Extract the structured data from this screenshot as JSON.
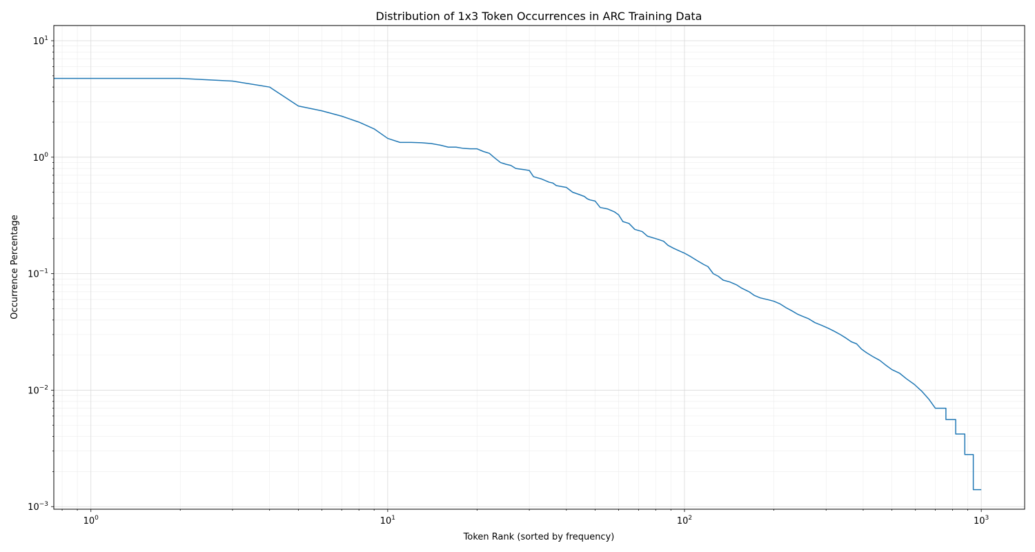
{
  "chart_data": {
    "type": "line",
    "title": "Distribution of 1x3 Token Occurrences in ARC Training Data",
    "xlabel": "Token Rank (sorted by frequency)",
    "ylabel": "Occurrence Percentage",
    "xscale": "log",
    "yscale": "log",
    "xlim": [
      0.75,
      1400
    ],
    "ylim": [
      0.00095,
      13.5
    ],
    "grid": true,
    "color": "#1f77b4",
    "x_ticks": [
      {
        "base": "10",
        "exp": "0",
        "value": 1
      },
      {
        "base": "10",
        "exp": "1",
        "value": 10
      },
      {
        "base": "10",
        "exp": "2",
        "value": 100
      },
      {
        "base": "10",
        "exp": "3",
        "value": 1000
      }
    ],
    "y_ticks": [
      {
        "base": "10",
        "exp": "−3",
        "value": 0.001
      },
      {
        "base": "10",
        "exp": "−2",
        "value": 0.01
      },
      {
        "base": "10",
        "exp": "−1",
        "value": 0.1
      },
      {
        "base": "10",
        "exp": "0",
        "value": 1
      },
      {
        "base": "10",
        "exp": "1",
        "value": 10
      }
    ],
    "series": [
      {
        "points": [
          [
            0.75,
            4.75
          ],
          [
            1,
            4.75
          ],
          [
            2,
            4.75
          ],
          [
            3,
            4.5
          ],
          [
            4,
            4.0
          ],
          [
            5,
            2.75
          ],
          [
            6,
            2.5
          ],
          [
            7,
            2.25
          ],
          [
            8,
            2.0
          ],
          [
            9,
            1.75
          ],
          [
            10,
            1.45
          ],
          [
            11,
            1.34
          ],
          [
            12,
            1.34
          ],
          [
            13,
            1.33
          ],
          [
            14,
            1.31
          ],
          [
            15,
            1.27
          ],
          [
            16,
            1.22
          ],
          [
            17,
            1.22
          ],
          [
            18,
            1.19
          ],
          [
            19,
            1.18
          ],
          [
            20,
            1.18
          ],
          [
            21,
            1.12
          ],
          [
            22,
            1.08
          ],
          [
            23,
            0.98
          ],
          [
            24,
            0.9
          ],
          [
            25,
            0.87
          ],
          [
            26,
            0.85
          ],
          [
            27,
            0.8
          ],
          [
            28,
            0.79
          ],
          [
            29,
            0.78
          ],
          [
            30,
            0.77
          ],
          [
            31,
            0.68
          ],
          [
            33,
            0.65
          ],
          [
            35,
            0.61
          ],
          [
            36,
            0.6
          ],
          [
            37,
            0.57
          ],
          [
            40,
            0.55
          ],
          [
            42,
            0.5
          ],
          [
            44,
            0.48
          ],
          [
            46,
            0.46
          ],
          [
            47,
            0.44
          ],
          [
            48,
            0.43
          ],
          [
            50,
            0.42
          ],
          [
            52,
            0.37
          ],
          [
            55,
            0.36
          ],
          [
            58,
            0.34
          ],
          [
            60,
            0.32
          ],
          [
            62,
            0.28
          ],
          [
            65,
            0.27
          ],
          [
            68,
            0.24
          ],
          [
            72,
            0.23
          ],
          [
            75,
            0.21
          ],
          [
            80,
            0.2
          ],
          [
            85,
            0.19
          ],
          [
            88,
            0.175
          ],
          [
            92,
            0.165
          ],
          [
            97,
            0.155
          ],
          [
            100,
            0.15
          ],
          [
            105,
            0.14
          ],
          [
            110,
            0.13
          ],
          [
            116,
            0.12
          ],
          [
            120,
            0.115
          ],
          [
            125,
            0.1
          ],
          [
            130,
            0.095
          ],
          [
            135,
            0.088
          ],
          [
            142,
            0.085
          ],
          [
            150,
            0.08
          ],
          [
            156,
            0.075
          ],
          [
            165,
            0.07
          ],
          [
            172,
            0.065
          ],
          [
            180,
            0.062
          ],
          [
            190,
            0.06
          ],
          [
            200,
            0.058
          ],
          [
            210,
            0.055
          ],
          [
            220,
            0.051
          ],
          [
            230,
            0.048
          ],
          [
            240,
            0.045
          ],
          [
            250,
            0.043
          ],
          [
            262,
            0.041
          ],
          [
            275,
            0.038
          ],
          [
            290,
            0.036
          ],
          [
            305,
            0.034
          ],
          [
            320,
            0.032
          ],
          [
            335,
            0.03
          ],
          [
            350,
            0.028
          ],
          [
            365,
            0.026
          ],
          [
            380,
            0.025
          ],
          [
            395,
            0.0225
          ],
          [
            410,
            0.021
          ],
          [
            430,
            0.0195
          ],
          [
            455,
            0.018
          ],
          [
            475,
            0.0165
          ],
          [
            500,
            0.015
          ],
          [
            530,
            0.014
          ],
          [
            560,
            0.0125
          ],
          [
            595,
            0.0112
          ],
          [
            630,
            0.0098
          ],
          [
            665,
            0.0084
          ],
          [
            700,
            0.007
          ],
          [
            760,
            0.007
          ],
          [
            760,
            0.0056
          ],
          [
            820,
            0.0056
          ],
          [
            820,
            0.0042
          ],
          [
            880,
            0.0042
          ],
          [
            880,
            0.0028
          ],
          [
            940,
            0.0028
          ],
          [
            940,
            0.0014
          ],
          [
            1000,
            0.0014
          ]
        ]
      }
    ]
  }
}
